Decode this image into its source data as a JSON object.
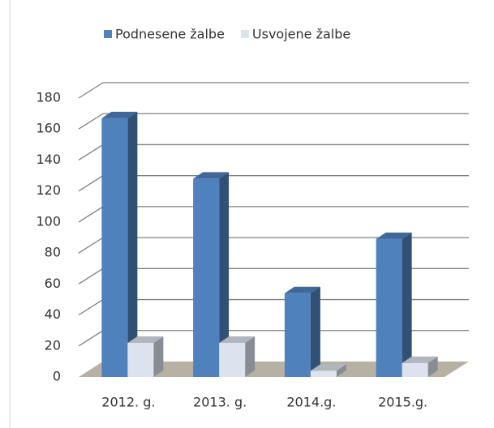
{
  "chart_data": {
    "type": "bar3d",
    "categories": [
      "2012. g.",
      "2013. g.",
      "2014.g.",
      "2015.g."
    ],
    "series": [
      {
        "name": "Podnesene žalbe",
        "color": "#4f81bd",
        "values": [
          167,
          128,
          54,
          89
        ]
      },
      {
        "name": "Usvojene žalbe",
        "color": "#dce3ee",
        "values": [
          22,
          22,
          4,
          9
        ]
      }
    ],
    "ylim": [
      0,
      180
    ],
    "yticks": [
      0,
      20,
      40,
      60,
      80,
      100,
      120,
      140,
      160,
      180
    ],
    "grid": true,
    "legend": "top"
  }
}
